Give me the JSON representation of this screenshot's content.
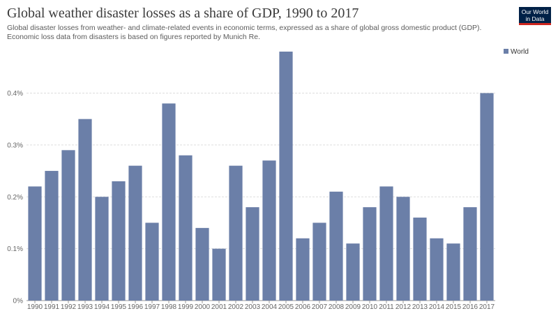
{
  "header": {
    "title": "Global weather disaster losses as a share of GDP, 1990 to 2017",
    "subtitle": "Global disaster losses from weather- and climate-related events in economic terms, expressed as a share of global gross domestic product (GDP). Economic loss data from disasters is based on figures reported by Munich Re."
  },
  "logo": {
    "line1": "Our World",
    "line2": "in Data",
    "bg_color": "#002147",
    "accent_color": "#ce261e"
  },
  "chart_data": {
    "type": "bar",
    "title": "Global weather disaster losses as a share of GDP, 1990 to 2017",
    "xlabel": "",
    "ylabel": "",
    "categories": [
      "1990",
      "1991",
      "1992",
      "1993",
      "1994",
      "1995",
      "1996",
      "1997",
      "1998",
      "1999",
      "2000",
      "2001",
      "2002",
      "2003",
      "2004",
      "2005",
      "2006",
      "2007",
      "2008",
      "2009",
      "2010",
      "2011",
      "2012",
      "2013",
      "2014",
      "2015",
      "2016",
      "2017"
    ],
    "series": [
      {
        "name": "World",
        "color": "#6b7fa8",
        "values": [
          0.22,
          0.25,
          0.29,
          0.35,
          0.2,
          0.23,
          0.26,
          0.15,
          0.38,
          0.28,
          0.14,
          0.1,
          0.26,
          0.18,
          0.27,
          0.48,
          0.12,
          0.15,
          0.21,
          0.11,
          0.18,
          0.22,
          0.2,
          0.16,
          0.12,
          0.11,
          0.18,
          0.4
        ]
      }
    ],
    "yticks": [
      0,
      0.1,
      0.2,
      0.3,
      0.4
    ],
    "ytick_labels": [
      "0%",
      "0.1%",
      "0.2%",
      "0.3%",
      "0.4%"
    ],
    "ylim": [
      0,
      0.48
    ],
    "grid": true,
    "legend": {
      "position": "top-right",
      "entries": [
        "World"
      ]
    }
  }
}
